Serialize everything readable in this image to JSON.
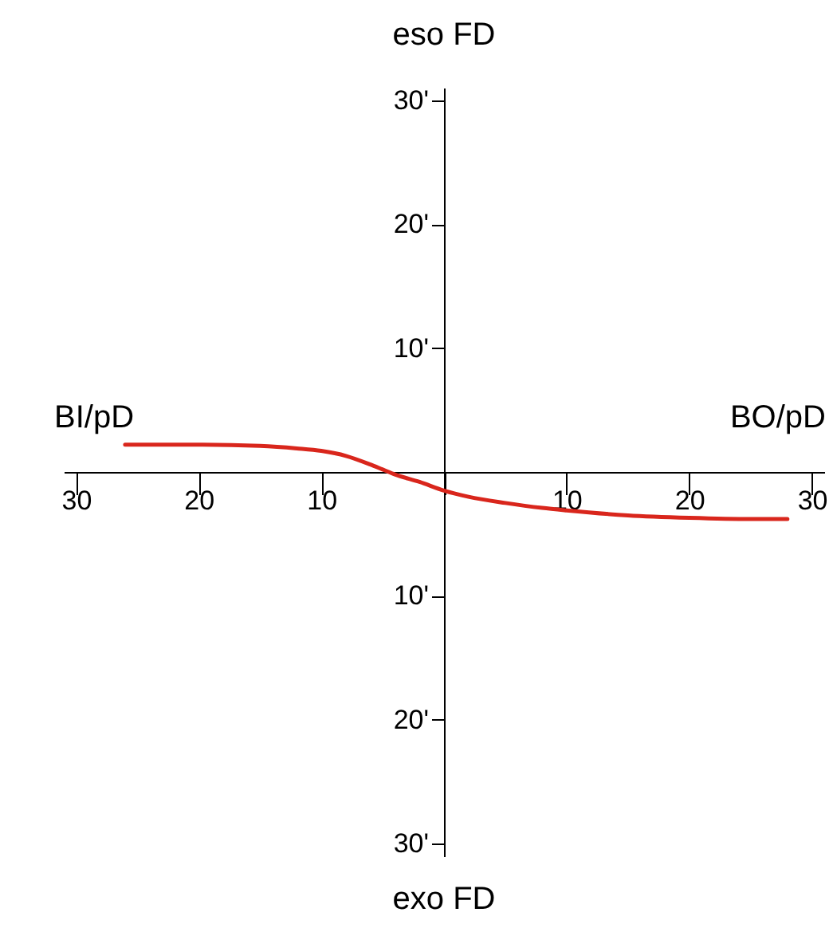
{
  "chart_data": {
    "type": "line",
    "ylabel": "eso FD",
    "xlabel": "BO/pD",
    "annotations": [
      "BI/pD",
      "exo FD"
    ],
    "x": [
      -26,
      -20,
      -15,
      -12,
      -10,
      -8,
      -6,
      -5,
      -4,
      -2,
      0,
      2,
      5,
      8,
      10,
      15,
      20,
      25,
      28
    ],
    "series": [
      {
        "color": "#d9261c",
        "values": [
          2.2,
          2.2,
          2.1,
          1.9,
          1.7,
          1.3,
          0.6,
          0.2,
          -0.2,
          -0.8,
          -1.5,
          -2.0,
          -2.5,
          -2.9,
          -3.1,
          -3.5,
          -3.7,
          -3.8,
          -3.8
        ]
      }
    ],
    "xlim": [
      -31,
      31
    ],
    "ylim": [
      -31,
      31
    ],
    "xticks": [
      {
        "value": -30,
        "label": "30"
      },
      {
        "value": -20,
        "label": "20"
      },
      {
        "value": -10,
        "label": "10"
      },
      {
        "value": 0,
        "label": null
      },
      {
        "value": 10,
        "label": "10"
      },
      {
        "value": 20,
        "label": "20"
      },
      {
        "value": 30,
        "label": "30"
      }
    ],
    "yticks": [
      {
        "value": -30,
        "label": "30'"
      },
      {
        "value": -20,
        "label": "20'"
      },
      {
        "value": -10,
        "label": "10'"
      },
      {
        "value": 0,
        "label": null
      },
      {
        "value": 10,
        "label": "10'"
      },
      {
        "value": 20,
        "label": "20'"
      },
      {
        "value": 30,
        "label": "30'"
      }
    ],
    "grid": false,
    "legend": false,
    "marker": "none",
    "line_style": "solid"
  }
}
